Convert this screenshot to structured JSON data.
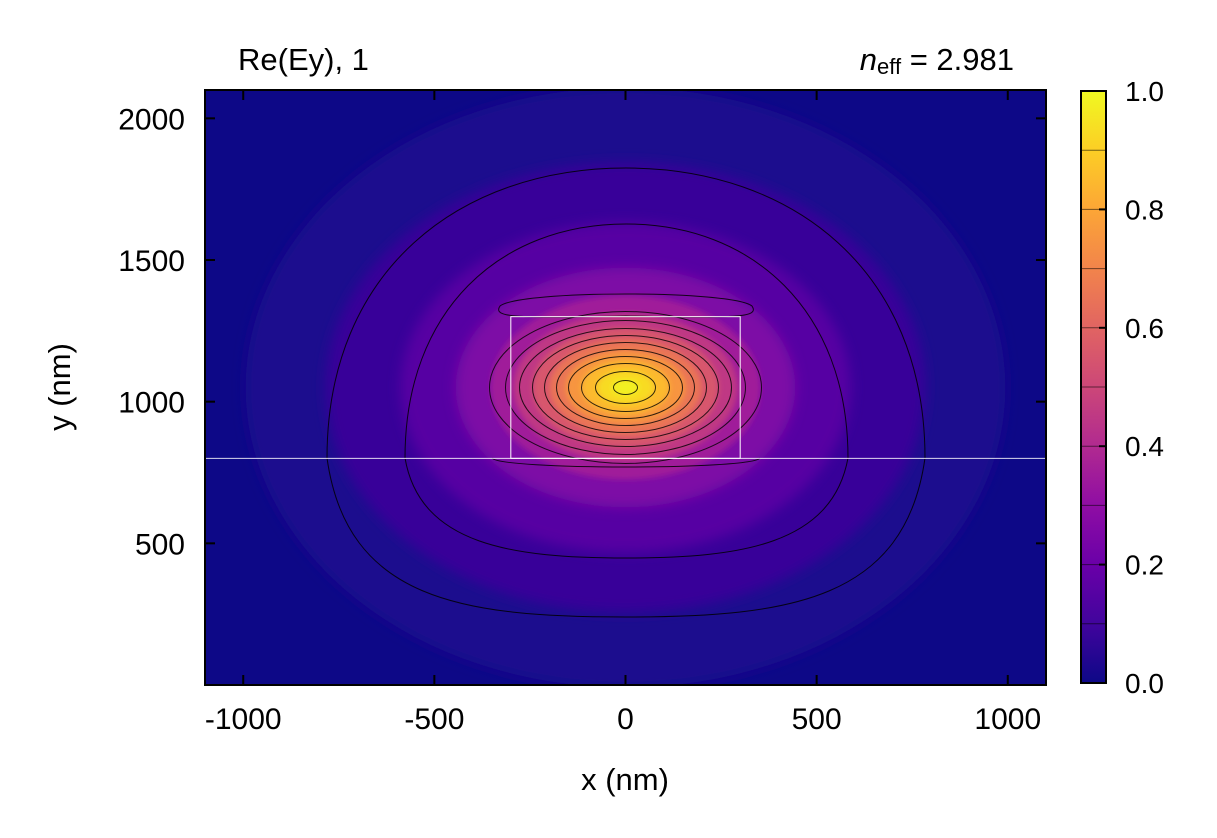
{
  "chart_data": {
    "type": "heatmap",
    "title_left": "Re(Ey), 1",
    "title_right": {
      "symbol": "n",
      "subscript": "eff",
      "equals": " = ",
      "value": "2.981"
    },
    "xlabel": "x (nm)",
    "ylabel": "y (nm)",
    "xlim": [
      -1100,
      1100
    ],
    "ylim": [
      0,
      2100
    ],
    "xticks": [
      -1000,
      -500,
      0,
      500,
      1000
    ],
    "xtick_labels": [
      "-1000",
      "-500",
      "0",
      "500",
      "1000"
    ],
    "yticks": [
      500,
      1000,
      1500,
      2000
    ],
    "ytick_labels": [
      "500",
      "1000",
      "1500",
      "2000"
    ],
    "colormap": "plasma",
    "colorbar": {
      "range": [
        0.0,
        1.0
      ],
      "ticks": [
        0.0,
        0.2,
        0.4,
        0.6,
        0.8,
        1.0
      ],
      "tick_labels": [
        "0.0",
        "0.2",
        "0.4",
        "0.6",
        "0.8",
        "1.0"
      ],
      "levels": 10
    },
    "field": {
      "peak_x": 0,
      "peak_y": 1050,
      "peak_value": 1.0
    },
    "structures": {
      "core_rect": {
        "x0": -300,
        "x1": 300,
        "y0": 800,
        "y1": 1300
      },
      "substrate_line_y": 800
    },
    "colors": {
      "background": "#0d0887",
      "structure_outline": "#ffffff",
      "contour": "#000000"
    }
  }
}
